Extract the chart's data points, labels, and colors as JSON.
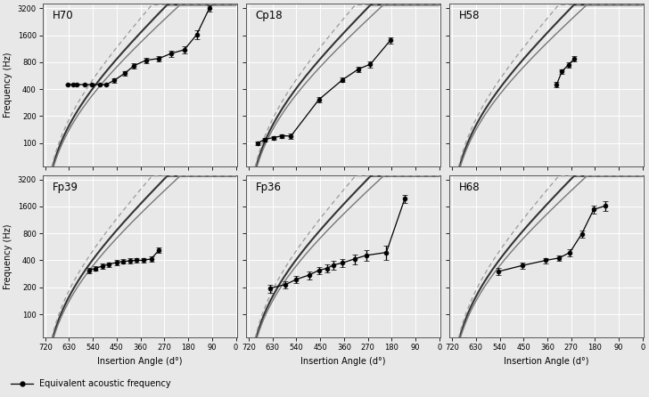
{
  "subjects": [
    "H70",
    "Cp18",
    "H58",
    "Fp39",
    "Fp36",
    "H68"
  ],
  "bg_color": "#e8e8e8",
  "grid_color": "#ffffff",
  "ylabel": "Frequency (Hz)",
  "xlabel": "Insertion Angle (d°)",
  "legend_label": "Equivalent acoustic frequency",
  "freq_data": {
    "H70": {
      "angles": [
        635,
        615,
        600,
        570,
        545,
        515,
        490,
        460,
        420,
        385,
        340,
        290,
        245,
        195,
        148,
        100
      ],
      "freqs": [
        450,
        450,
        450,
        450,
        450,
        450,
        450,
        500,
        600,
        730,
        840,
        880,
        1000,
        1100,
        1620,
        3200
      ],
      "yerr": [
        0,
        0,
        0,
        0,
        0,
        0,
        0,
        30,
        40,
        50,
        55,
        65,
        75,
        95,
        185,
        270
      ]
    },
    "Cp18": {
      "angles": [
        685,
        660,
        625,
        595,
        560,
        455,
        365,
        305,
        260,
        185
      ],
      "freqs": [
        100,
        110,
        115,
        120,
        120,
        305,
        510,
        670,
        760,
        1400
      ],
      "yerr": [
        5,
        5,
        5,
        5,
        8,
        18,
        28,
        48,
        58,
        110
      ]
    },
    "H58": {
      "angles": [
        325,
        305,
        280,
        258
      ],
      "freqs": [
        450,
        630,
        750,
        875
      ],
      "yerr": [
        30,
        40,
        50,
        65
      ]
    },
    "Fp39": {
      "angles": [
        555,
        530,
        505,
        480,
        450,
        425,
        400,
        375,
        350,
        320,
        290
      ],
      "freqs": [
        310,
        325,
        345,
        360,
        380,
        390,
        395,
        400,
        400,
        415,
        520
      ],
      "yerr": [
        20,
        20,
        20,
        20,
        25,
        25,
        25,
        25,
        25,
        30,
        40
      ]
    },
    "Fp36": {
      "angles": [
        640,
        580,
        540,
        490,
        455,
        425,
        400,
        365,
        320,
        275,
        200,
        130
      ],
      "freqs": [
        195,
        215,
        245,
        275,
        310,
        325,
        355,
        375,
        415,
        455,
        490,
        1960
      ],
      "yerr": [
        20,
        20,
        22,
        28,
        28,
        32,
        38,
        42,
        52,
        62,
        88,
        215
      ]
    },
    "H68": {
      "angles": [
        545,
        455,
        365,
        315,
        275,
        230,
        185,
        142
      ],
      "freqs": [
        300,
        350,
        400,
        425,
        490,
        790,
        1480,
        1620
      ],
      "yerr": [
        28,
        28,
        28,
        32,
        42,
        80,
        155,
        195
      ]
    }
  },
  "xticks": [
    720,
    630,
    540,
    450,
    360,
    270,
    180,
    90,
    0
  ],
  "yticks": [
    100,
    200,
    400,
    800,
    1600,
    3200
  ],
  "ylim": [
    55,
    3600
  ],
  "xlim_lo": 730,
  "xlim_hi": -5,
  "curve1_color": "#333333",
  "curve2_color": "#777777",
  "dashed_color": "#999999",
  "data_color": "#000000",
  "greenwood_A": 165.4,
  "greenwood_a": 2.1,
  "greenwood_k": 0.88,
  "greenwood2_A": 165.4,
  "greenwood2_a": 1.9,
  "greenwood2_k": 0.88,
  "greenwood_d_A": 165.4,
  "greenwood_d_a": 2.4,
  "greenwood_d_k": 0.88
}
